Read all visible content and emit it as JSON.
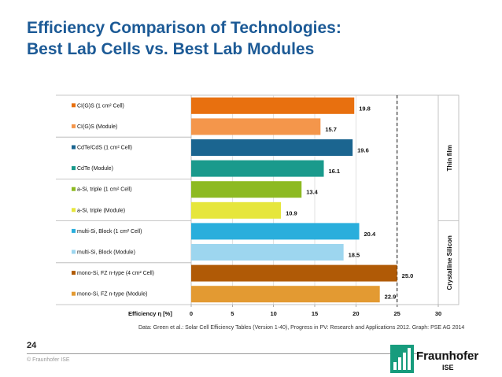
{
  "title_lines": [
    "Efficiency Comparison of Technologies:",
    "Best Lab Cells vs. Best Lab Modules"
  ],
  "footer": {
    "source": "Data: Green et al.: Solar Cell Efficiency Tables (Version 1-40), Progress in PV: Research and Applications 2012. Graph: PSE AG 2014",
    "page_number": "24",
    "copyright": "© Fraunhofer ISE",
    "logo_word": "Fraunhofer",
    "logo_sub": "ISE"
  },
  "chart_data": {
    "type": "bar",
    "orientation": "horizontal",
    "categories": [
      "CI(G)S (1 cm² Cell)",
      "CI(G)S (Module)",
      "CdTe/CdS (1 cm² Cell)",
      "CdTe (Module)",
      "a-Si, triple (1 cm² Cell)",
      "a-Si, triple (Module)",
      "multi-Si, Block (1 cm² Cell)",
      "multi-Si, Block (Module)",
      "mono-Si, FZ n-type (4 cm² Cell)",
      "mono-Si, FZ n-type (Module)"
    ],
    "values": [
      19.8,
      15.7,
      19.6,
      16.1,
      13.4,
      10.9,
      20.4,
      18.5,
      25.0,
      22.9
    ],
    "value_labels": [
      "19.8",
      "15.7",
      "19.6",
      "16.1",
      "13.4",
      "10.9",
      "20.4",
      "18.5",
      "25.0",
      "22.9"
    ],
    "colors": [
      "#e8700f",
      "#f4964b",
      "#1b6590",
      "#1a9a8c",
      "#8dba22",
      "#e6e63c",
      "#2aaedc",
      "#9dd6ef",
      "#b05a06",
      "#e39a32"
    ],
    "xlabel": "Efficiency  η  [%]",
    "xlim": [
      0,
      30
    ],
    "xticks": [
      "0",
      "5",
      "10",
      "15",
      "20",
      "25",
      "30"
    ],
    "reference_line": 25,
    "groups": [
      {
        "label": "Thin film",
        "from": 0,
        "to": 5
      },
      {
        "label": "Crystalline Silicon",
        "from": 6,
        "to": 9
      }
    ]
  }
}
